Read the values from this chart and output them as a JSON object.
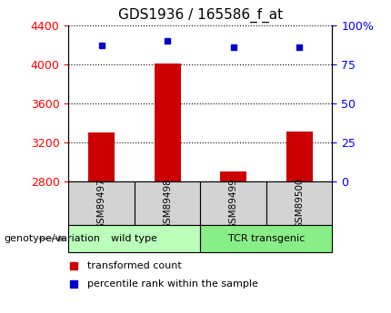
{
  "title": "GDS1936 / 165586_f_at",
  "samples": [
    "GSM89497",
    "GSM89498",
    "GSM89499",
    "GSM89500"
  ],
  "bar_values": [
    3300,
    4010,
    2900,
    3310
  ],
  "percentile_values": [
    87,
    90,
    86,
    86
  ],
  "bar_color": "#cc0000",
  "dot_color": "#0000cc",
  "ylim_left": [
    2800,
    4400
  ],
  "ylim_right": [
    0,
    100
  ],
  "yticks_left": [
    2800,
    3200,
    3600,
    4000,
    4400
  ],
  "yticks_right": [
    0,
    25,
    50,
    75,
    100
  ],
  "ytick_right_labels": [
    "0",
    "25",
    "50",
    "75",
    "100%"
  ],
  "bar_baseline": 2800,
  "legend_red": "transformed count",
  "legend_blue": "percentile rank within the sample",
  "background_color": "#ffffff",
  "sample_box_color": "#d3d3d3",
  "group_spans": [
    [
      0,
      2,
      "wild type",
      "#bbffbb"
    ],
    [
      2,
      4,
      "TCR transgenic",
      "#88ee88"
    ]
  ],
  "genotype_label": "genotype/variation"
}
